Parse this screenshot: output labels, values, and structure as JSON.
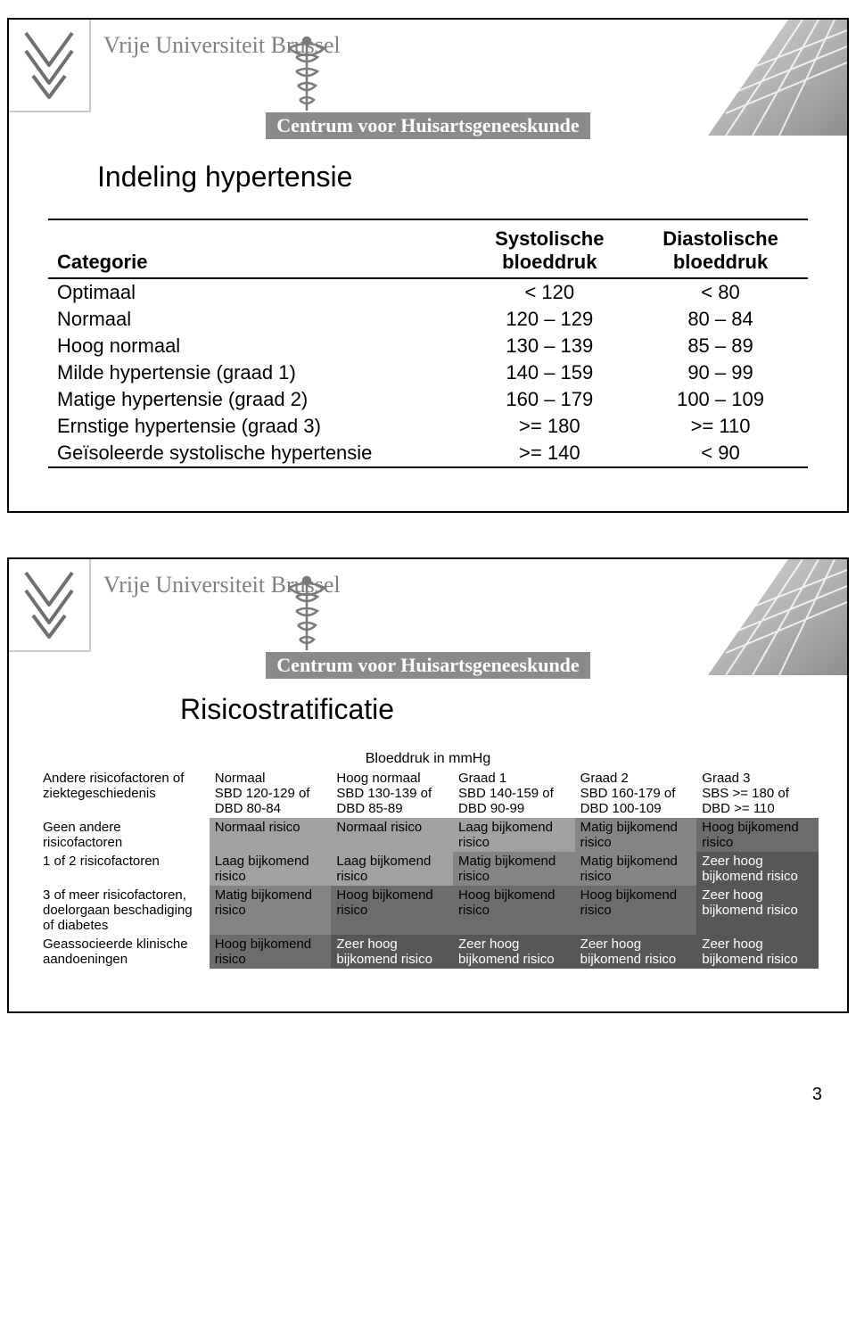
{
  "university_name": "Vrije Universiteit Brussel",
  "department_bar": "Centrum voor Huisartsgeneeskunde",
  "page_number": "3",
  "slide1": {
    "title": "Indeling hypertensie",
    "columns": [
      "Categorie",
      "Systolische bloeddruk",
      "Diastolische bloeddruk"
    ],
    "rows": [
      {
        "cat": "Optimaal",
        "sys": "< 120",
        "dia": "< 80"
      },
      {
        "cat": "Normaal",
        "sys": "120 – 129",
        "dia": "80 – 84"
      },
      {
        "cat": "Hoog normaal",
        "sys": "130 – 139",
        "dia": "85 – 89"
      },
      {
        "cat": "Milde hypertensie (graad 1)",
        "sys": "140 – 159",
        "dia": "90 – 99"
      },
      {
        "cat": "Matige hypertensie (graad 2)",
        "sys": "160 – 179",
        "dia": "100 – 109"
      },
      {
        "cat": "Ernstige hypertensie (graad 3)",
        "sys": ">= 180",
        "dia": ">= 110"
      },
      {
        "cat": "Geïsoleerde systolische hypertensie",
        "sys": ">= 140",
        "dia": "< 90"
      }
    ]
  },
  "slide2": {
    "title": "Risicostratificatie",
    "caption": "Bloeddruk in mmHg",
    "row_header_label": "Andere risicofactoren of ziektegeschiedenis",
    "col_headers": [
      {
        "l1": "Normaal",
        "l2": "SBD 120-129 of DBD 80-84"
      },
      {
        "l1": "Hoog normaal",
        "l2": "SBD 130-139 of DBD 85-89"
      },
      {
        "l1": "Graad 1",
        "l2": "SBD 140-159 of DBD 90-99"
      },
      {
        "l1": "Graad 2",
        "l2": "SBD 160-179 of DBD 100-109"
      },
      {
        "l1": "Graad 3",
        "l2": "SBS >= 180 of DBD >= 110"
      }
    ],
    "row_labels": [
      "Geen andere risicofactoren",
      "1 of 2 risicofactoren",
      "3 of meer risicofactoren, doelorgaan beschadiging of diabetes",
      "Geassocieerde klinische aandoeningen"
    ],
    "shades": {
      "normaal": "#a1a1a1",
      "laag": "#a1a1a1",
      "matig": "#848484",
      "hoog": "#6d6d6d",
      "zeerhoog": "#575757"
    },
    "cells": [
      [
        {
          "t": "Normaal risico",
          "s": "a1a1"
        },
        {
          "t": "Normaal risico",
          "s": "a1a1"
        },
        {
          "t": "Laag bijkomend risico",
          "s": "a1a1"
        },
        {
          "t": "Matig bijkomend risico",
          "s": "8484"
        },
        {
          "t": "Hoog bijkomend risico",
          "s": "6d6d"
        }
      ],
      [
        {
          "t": "Laag bijkomend risico",
          "s": "a1a1"
        },
        {
          "t": "Laag bijkomend risico",
          "s": "a1a1"
        },
        {
          "t": "Matig bijkomend risico",
          "s": "8484"
        },
        {
          "t": "Matig bijkomend risico",
          "s": "8484"
        },
        {
          "t": "Zeer hoog bijkomend risico",
          "s": "5757"
        }
      ],
      [
        {
          "t": "Matig bijkomend risico",
          "s": "8484"
        },
        {
          "t": "Hoog bijkomend risico",
          "s": "6d6d"
        },
        {
          "t": "Hoog bijkomend risico",
          "s": "6d6d"
        },
        {
          "t": "Hoog bijkomend risico",
          "s": "6d6d"
        },
        {
          "t": "Zeer hoog bijkomend risico",
          "s": "5757"
        }
      ],
      [
        {
          "t": "Hoog bijkomend risico",
          "s": "6d6d"
        },
        {
          "t": "Zeer hoog bijkomend risico",
          "s": "5757"
        },
        {
          "t": "Zeer hoog bijkomend risico",
          "s": "5757"
        },
        {
          "t": "Zeer hoog bijkomend risico",
          "s": "5757"
        },
        {
          "t": "Zeer hoog bijkomend risico",
          "s": "5757"
        }
      ]
    ]
  }
}
